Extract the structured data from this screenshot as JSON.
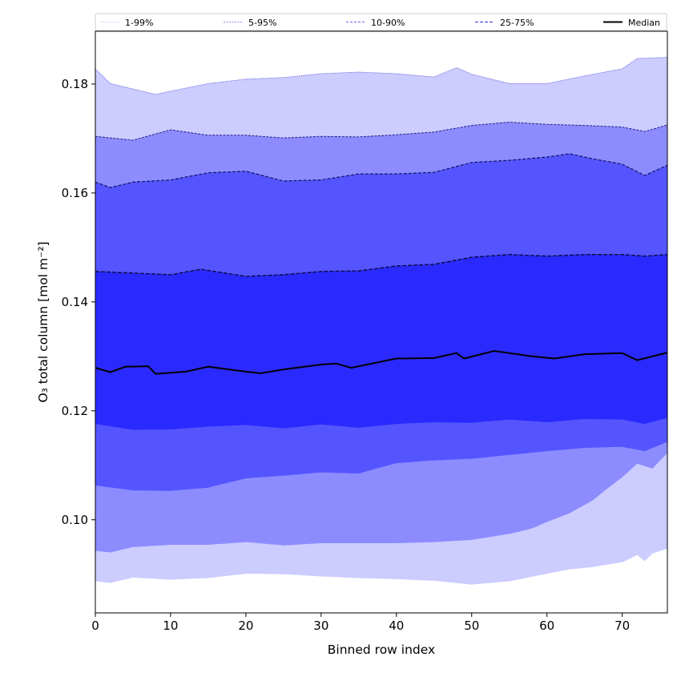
{
  "chart_data": {
    "type": "area",
    "title": "",
    "xlabel": "Binned row index",
    "ylabel": "O₃ total column [mol m⁻²]",
    "xlim": [
      0,
      76
    ],
    "ylim": [
      0.0829,
      0.1897
    ],
    "xticks": [
      0,
      10,
      20,
      30,
      40,
      50,
      60,
      70
    ],
    "xtick_labels": [
      "0",
      "10",
      "20",
      "30",
      "40",
      "50",
      "60",
      "70"
    ],
    "yticks": [
      0.1,
      0.12,
      0.14,
      0.16,
      0.18
    ],
    "ytick_labels": [
      "0.10",
      "0.12",
      "0.14",
      "0.16",
      "0.18"
    ],
    "grid": false,
    "legend_position": "top (above plot, single row)",
    "legend": [
      {
        "label": "1-99%",
        "color": "#ccccff",
        "style": "dotted"
      },
      {
        "label": "5-95%",
        "color": "#8c8cff",
        "style": "dashed"
      },
      {
        "label": "10-90%",
        "color": "#5555ff",
        "style": "dashed"
      },
      {
        "label": "25-75%",
        "color": "#2a2aff",
        "style": "dashed"
      },
      {
        "label": "Median",
        "color": "#000000",
        "style": "solid"
      }
    ],
    "colors": {
      "band_1_99": "#ccccff",
      "band_5_95": "#8c8cff",
      "band_10_90": "#5555ff",
      "band_25_75": "#2a2aff",
      "median": "#000000"
    },
    "series": [
      {
        "name": "p99",
        "x": [
          0,
          2,
          5,
          8,
          10,
          15,
          20,
          25,
          30,
          35,
          40,
          45,
          48,
          50,
          55,
          60,
          65,
          70,
          72,
          76
        ],
        "values": [
          0.1828,
          0.1801,
          0.1791,
          0.1781,
          0.1787,
          0.1801,
          0.1809,
          0.1812,
          0.1819,
          0.1822,
          0.1819,
          0.1813,
          0.183,
          0.1818,
          0.1801,
          0.1801,
          0.1815,
          0.1828,
          0.1847,
          0.1849
        ]
      },
      {
        "name": "p95",
        "x": [
          0,
          5,
          10,
          15,
          20,
          25,
          30,
          35,
          40,
          45,
          50,
          55,
          60,
          65,
          70,
          73,
          76
        ],
        "values": [
          0.1704,
          0.1697,
          0.1716,
          0.1706,
          0.1706,
          0.1701,
          0.1704,
          0.1703,
          0.1707,
          0.1712,
          0.1724,
          0.173,
          0.1726,
          0.1724,
          0.1721,
          0.1713,
          0.1725
        ]
      },
      {
        "name": "p90",
        "x": [
          0,
          2,
          5,
          10,
          15,
          20,
          25,
          30,
          35,
          40,
          45,
          50,
          55,
          60,
          63,
          66,
          70,
          73,
          76
        ],
        "values": [
          0.162,
          0.161,
          0.162,
          0.1624,
          0.1637,
          0.164,
          0.1622,
          0.1624,
          0.1635,
          0.1635,
          0.1638,
          0.1656,
          0.166,
          0.1666,
          0.1672,
          0.1663,
          0.1653,
          0.1632,
          0.1651
        ]
      },
      {
        "name": "p75",
        "x": [
          0,
          5,
          10,
          14,
          20,
          25,
          30,
          35,
          40,
          45,
          50,
          55,
          60,
          65,
          70,
          73,
          76
        ],
        "values": [
          0.1456,
          0.1453,
          0.145,
          0.146,
          0.1447,
          0.145,
          0.1456,
          0.1457,
          0.1466,
          0.1469,
          0.1482,
          0.1487,
          0.1484,
          0.1487,
          0.1487,
          0.1484,
          0.1487
        ]
      },
      {
        "name": "Median",
        "x": [
          0,
          2,
          4,
          7,
          8,
          12,
          15,
          20,
          22,
          25,
          30,
          32,
          34,
          40,
          45,
          48,
          49,
          53,
          58,
          61,
          65,
          70,
          72,
          76
        ],
        "values": [
          0.1279,
          0.1271,
          0.1281,
          0.1282,
          0.1268,
          0.1272,
          0.1281,
          0.1272,
          0.1269,
          0.1276,
          0.1285,
          0.1287,
          0.1279,
          0.1296,
          0.1297,
          0.1306,
          0.1296,
          0.131,
          0.13,
          0.1296,
          0.1304,
          0.1306,
          0.1293,
          0.1307
        ]
      },
      {
        "name": "p25",
        "x": [
          0,
          5,
          10,
          15,
          20,
          25,
          30,
          35,
          40,
          45,
          50,
          55,
          60,
          65,
          70,
          73,
          76
        ],
        "values": [
          0.1176,
          0.1165,
          0.1166,
          0.1171,
          0.1174,
          0.1168,
          0.1175,
          0.1169,
          0.1176,
          0.1179,
          0.1178,
          0.1184,
          0.1179,
          0.1185,
          0.1184,
          0.1176,
          0.1187
        ]
      },
      {
        "name": "p10",
        "x": [
          0,
          5,
          10,
          15,
          20,
          25,
          30,
          35,
          40,
          45,
          50,
          55,
          60,
          65,
          70,
          73,
          76
        ],
        "values": [
          0.1063,
          0.1054,
          0.1053,
          0.1059,
          0.1076,
          0.1081,
          0.1087,
          0.1085,
          0.1104,
          0.1109,
          0.1112,
          0.1119,
          0.1126,
          0.1132,
          0.1134,
          0.1126,
          0.1143
        ]
      },
      {
        "name": "p5",
        "x": [
          0,
          2,
          5,
          10,
          15,
          20,
          25,
          30,
          35,
          40,
          45,
          50,
          55,
          58,
          60,
          63,
          66,
          68,
          70,
          72,
          74,
          76
        ],
        "values": [
          0.0943,
          0.094,
          0.095,
          0.0954,
          0.0954,
          0.0959,
          0.0953,
          0.0957,
          0.0957,
          0.0957,
          0.0959,
          0.0963,
          0.0974,
          0.0984,
          0.0996,
          0.1012,
          0.1035,
          0.1057,
          0.1078,
          0.1103,
          0.1094,
          0.1122
        ]
      },
      {
        "name": "p1",
        "x": [
          0,
          2,
          5,
          10,
          15,
          20,
          25,
          30,
          35,
          40,
          45,
          50,
          55,
          60,
          63,
          66,
          70,
          72,
          73,
          74,
          76
        ],
        "values": [
          0.0887,
          0.0884,
          0.0894,
          0.089,
          0.0893,
          0.0901,
          0.09,
          0.0896,
          0.0893,
          0.0891,
          0.0888,
          0.0881,
          0.0887,
          0.0901,
          0.0909,
          0.0913,
          0.0922,
          0.0935,
          0.0924,
          0.0938,
          0.0947
        ]
      }
    ]
  }
}
